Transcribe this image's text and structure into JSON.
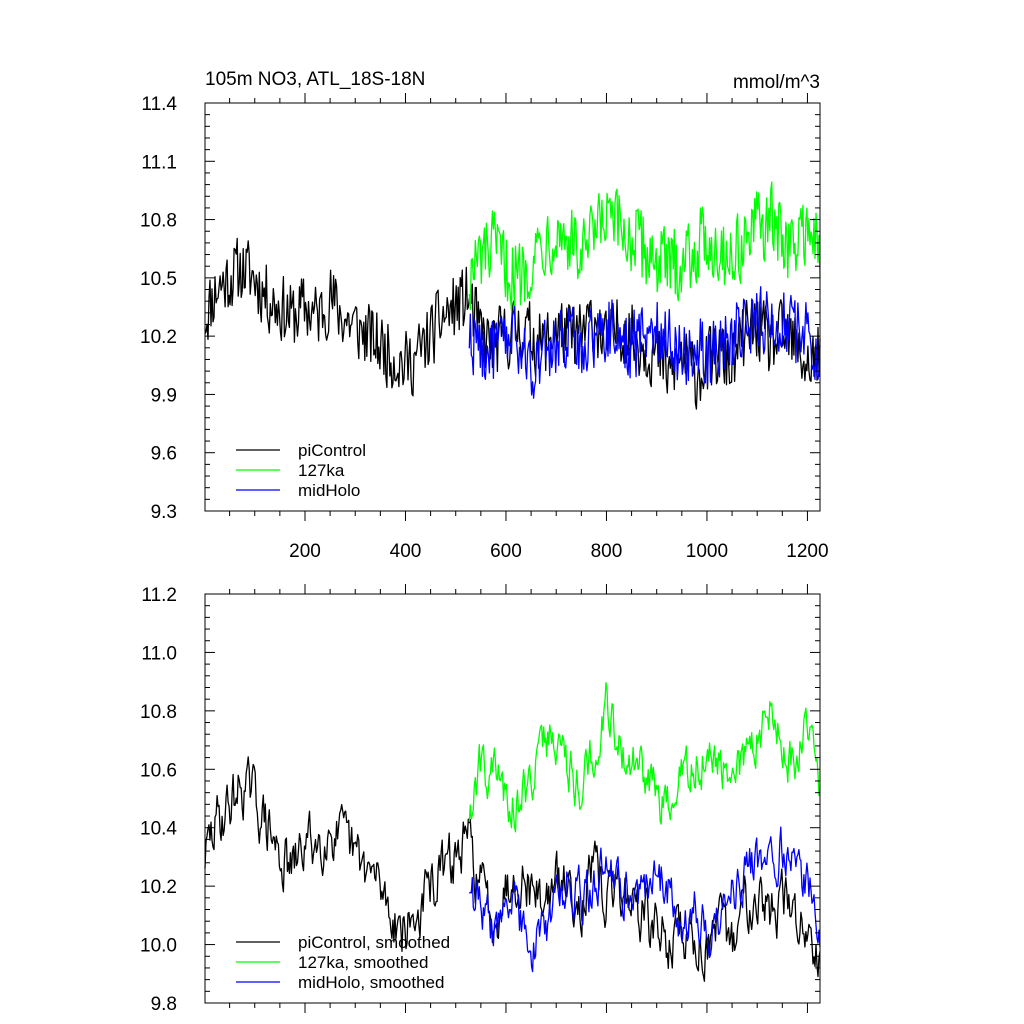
{
  "chart_data": [
    {
      "type": "line",
      "title": "105m NO3, ATL_18S-18N",
      "units": "mmol/m^3",
      "xlabel": "",
      "ylabel": "",
      "xlim": [
        1,
        1225
      ],
      "ylim": [
        9.3,
        11.4
      ],
      "xticks": [
        200,
        400,
        600,
        800,
        1000,
        1200
      ],
      "xtick_labels": [
        "200",
        "400",
        "600",
        "800",
        "1000",
        "1200"
      ],
      "yticks": [
        9.3,
        9.6,
        9.9,
        10.2,
        10.5,
        10.8,
        11.1,
        11.4
      ],
      "ytick_labels": [
        "9.3",
        "9.6",
        "9.9",
        "10.2",
        "10.5",
        "10.8",
        "11.1",
        "11.4"
      ],
      "legend_position": "bottom-left",
      "series": [
        {
          "name": "piControl",
          "color": "#000000",
          "x": [
            1,
            25,
            50,
            75,
            100,
            125,
            150,
            175,
            200,
            225,
            250,
            275,
            300,
            325,
            350,
            375,
            400,
            425,
            450,
            475,
            500,
            525,
            550,
            575,
            600,
            625,
            650,
            675,
            700,
            725,
            750,
            775,
            800,
            825,
            850,
            875,
            900,
            925,
            950,
            975,
            1000,
            1025,
            1050,
            1075,
            1100,
            1125,
            1150,
            1175,
            1200,
            1225
          ],
          "values": [
            10.3,
            10.45,
            10.5,
            10.55,
            10.5,
            10.4,
            10.35,
            10.3,
            10.35,
            10.3,
            10.4,
            10.3,
            10.25,
            10.2,
            10.15,
            10.1,
            10.05,
            10.1,
            10.2,
            10.3,
            10.35,
            10.4,
            10.2,
            10.15,
            10.2,
            10.25,
            10.2,
            10.15,
            10.25,
            10.2,
            10.2,
            10.3,
            10.15,
            10.25,
            10.2,
            10.15,
            10.1,
            10.0,
            10.1,
            10.0,
            10.05,
            10.1,
            10.05,
            10.2,
            10.25,
            10.15,
            10.2,
            10.15,
            10.05,
            10.1
          ],
          "amplitude": 0.2
        },
        {
          "name": "127ka",
          "color": "#00ff00",
          "x": [
            527,
            550,
            575,
            600,
            625,
            650,
            675,
            700,
            725,
            750,
            775,
            800,
            825,
            850,
            875,
            900,
            925,
            950,
            975,
            1000,
            1025,
            1050,
            1075,
            1100,
            1125,
            1150,
            1175,
            1200,
            1225
          ],
          "values": [
            10.5,
            10.6,
            10.65,
            10.55,
            10.5,
            10.6,
            10.7,
            10.75,
            10.7,
            10.6,
            10.7,
            10.8,
            10.75,
            10.7,
            10.65,
            10.6,
            10.55,
            10.6,
            10.65,
            10.7,
            10.65,
            10.6,
            10.7,
            10.75,
            10.8,
            10.7,
            10.65,
            10.8,
            10.6
          ],
          "amplitude": 0.22
        },
        {
          "name": "midHolo",
          "color": "#0000ff",
          "x": [
            527,
            550,
            575,
            600,
            625,
            650,
            675,
            700,
            725,
            750,
            775,
            800,
            825,
            850,
            875,
            900,
            925,
            950,
            975,
            1000,
            1025,
            1050,
            1075,
            1100,
            1125,
            1150,
            1175,
            1200,
            1225
          ],
          "values": [
            10.2,
            10.15,
            10.1,
            10.2,
            10.15,
            10.05,
            10.1,
            10.15,
            10.2,
            10.15,
            10.2,
            10.25,
            10.2,
            10.15,
            10.2,
            10.25,
            10.2,
            10.1,
            10.15,
            10.1,
            10.15,
            10.2,
            10.25,
            10.3,
            10.25,
            10.3,
            10.2,
            10.25,
            10.1
          ],
          "amplitude": 0.2
        }
      ],
      "legend": [
        "piControl",
        "127ka",
        "midHolo"
      ]
    },
    {
      "type": "line",
      "title": "",
      "xlabel": "",
      "ylabel": "",
      "xlim": [
        1,
        1225
      ],
      "ylim": [
        9.8,
        11.2
      ],
      "xticks": [
        200,
        400,
        600,
        800,
        1000,
        1200
      ],
      "yticks": [
        9.8,
        10.0,
        10.2,
        10.4,
        10.6,
        10.8,
        11.0,
        11.2
      ],
      "ytick_labels": [
        "9.8",
        "10.0",
        "10.2",
        "10.4",
        "10.6",
        "10.8",
        "11.0",
        "11.2"
      ],
      "legend_position": "bottom-left",
      "series": [
        {
          "name": "piControl, smoothed",
          "color": "#000000",
          "x": [
            1,
            25,
            50,
            75,
            100,
            125,
            150,
            175,
            200,
            225,
            250,
            275,
            300,
            325,
            350,
            375,
            400,
            425,
            450,
            475,
            500,
            525,
            550,
            575,
            600,
            625,
            650,
            675,
            700,
            725,
            750,
            775,
            800,
            825,
            850,
            875,
            900,
            925,
            950,
            975,
            1000,
            1025,
            1050,
            1075,
            1100,
            1125,
            1150,
            1175,
            1200,
            1225
          ],
          "values": [
            10.3,
            10.42,
            10.48,
            10.55,
            10.5,
            10.4,
            10.3,
            10.25,
            10.35,
            10.35,
            10.4,
            10.35,
            10.3,
            10.25,
            10.2,
            10.1,
            10.05,
            10.1,
            10.2,
            10.25,
            10.3,
            10.35,
            10.2,
            10.1,
            10.2,
            10.25,
            10.2,
            10.15,
            10.2,
            10.2,
            10.15,
            10.25,
            10.15,
            10.2,
            10.15,
            10.1,
            10.05,
            10.0,
            10.05,
            10.0,
            10.0,
            10.05,
            10.0,
            10.15,
            10.2,
            10.1,
            10.15,
            10.1,
            10.05,
            10.0
          ],
          "amplitude": 0.08
        },
        {
          "name": "127ka, smoothed",
          "color": "#00ff00",
          "x": [
            527,
            550,
            575,
            600,
            625,
            650,
            675,
            700,
            725,
            750,
            775,
            800,
            825,
            850,
            875,
            900,
            925,
            950,
            975,
            1000,
            1025,
            1050,
            1075,
            1100,
            1125,
            1150,
            1175,
            1200,
            1225
          ],
          "values": [
            10.45,
            10.62,
            10.6,
            10.5,
            10.48,
            10.58,
            10.7,
            10.72,
            10.6,
            10.55,
            10.65,
            10.85,
            10.68,
            10.62,
            10.58,
            10.5,
            10.45,
            10.55,
            10.62,
            10.65,
            10.6,
            10.55,
            10.62,
            10.72,
            10.82,
            10.68,
            10.6,
            10.8,
            10.55
          ],
          "amplitude": 0.07
        },
        {
          "name": "midHolo, smoothed",
          "color": "#0000ff",
          "x": [
            527,
            550,
            575,
            600,
            625,
            650,
            675,
            700,
            725,
            750,
            775,
            800,
            825,
            850,
            875,
            900,
            925,
            950,
            975,
            1000,
            1025,
            1050,
            1075,
            1100,
            1125,
            1150,
            1175,
            1200,
            1225
          ],
          "values": [
            10.2,
            10.1,
            10.05,
            10.15,
            10.1,
            10.0,
            10.05,
            10.15,
            10.22,
            10.15,
            10.2,
            10.28,
            10.22,
            10.15,
            10.2,
            10.25,
            10.2,
            10.08,
            10.12,
            10.05,
            10.1,
            10.18,
            10.25,
            10.3,
            10.25,
            10.35,
            10.25,
            10.2,
            10.08
          ],
          "amplitude": 0.07
        }
      ],
      "legend": [
        "piControl, smoothed",
        "127ka, smoothed",
        "midHolo, smoothed"
      ]
    }
  ]
}
